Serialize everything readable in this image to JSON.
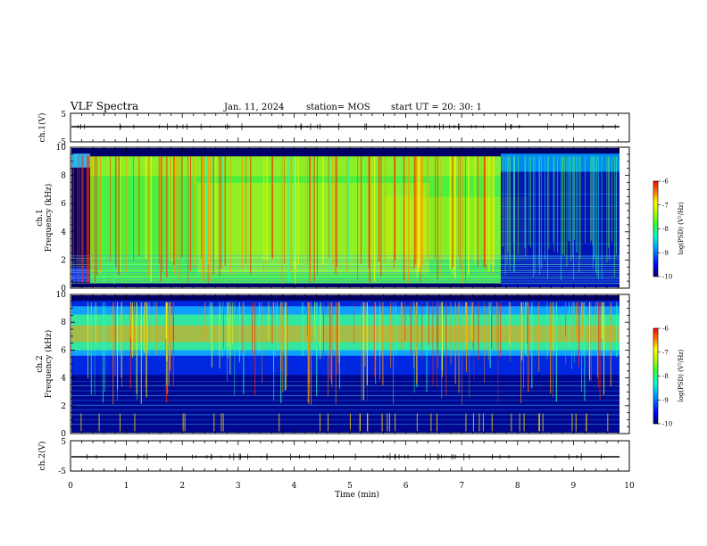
{
  "header": {
    "title": "VLF Spectra",
    "date": "Jan. 11, 2024",
    "station": "station= MOS",
    "start": "start UT =  20: 30: 1"
  },
  "colors": {
    "spectrogram_background": "#000066",
    "colormap": [
      "#00006a",
      "#0000ff",
      "#00a0ff",
      "#00ffd0",
      "#30ff30",
      "#b0ff00",
      "#ffff00",
      "#ff8000",
      "#ff0000"
    ]
  },
  "chart_data": [
    {
      "type": "line",
      "panel": "ch1-waveform",
      "ylabel": "ch.1(V)",
      "ylim": [
        -5,
        5
      ],
      "yticks": [
        "5",
        "-5"
      ],
      "x": [
        0,
        9.83
      ],
      "y": [
        0,
        0
      ],
      "note_values": "flat trace near 0 V with sparse small spikes"
    },
    {
      "type": "heatmap",
      "panel": "ch1-spectrogram",
      "ylabel": "ch.1 Frequency (kHz)",
      "xlim": [
        0,
        10
      ],
      "data_xmax": 9.83,
      "ylim": [
        0,
        10
      ],
      "yticks": [
        "0",
        "2",
        "4",
        "6",
        "8",
        "10"
      ],
      "colorbar": {
        "label": "log(PSD) (V²/Hz)",
        "ticks": [
          "-6",
          "-7",
          "-8",
          "-9",
          "-10"
        ],
        "range": [
          -10,
          -6
        ]
      },
      "segments": [
        {
          "t": [
            0.0,
            0.35
          ],
          "desc": "blue background with bright bands near 9 kHz"
        },
        {
          "t": [
            0.35,
            7.7
          ],
          "desc": "green/yellow broadband 0.5-9 kHz, frequent red vertical spherics"
        },
        {
          "t": [
            7.7,
            9.83
          ],
          "desc": "blue background, scattered cyan/green spherics"
        }
      ]
    },
    {
      "type": "heatmap",
      "panel": "ch2-spectrogram",
      "ylabel": "ch.2 Frequency (kHz)",
      "xlim": [
        0,
        10
      ],
      "data_xmax": 9.83,
      "ylim": [
        0,
        10
      ],
      "yticks": [
        "0",
        "2",
        "4",
        "6",
        "8",
        "10"
      ],
      "colorbar": {
        "label": "log(PSD) (V²/Hz)",
        "ticks": [
          "-6",
          "-7",
          "-8",
          "-9",
          "-10"
        ],
        "range": [
          -10,
          -6
        ]
      },
      "segments": [
        {
          "t": [
            0.0,
            9.83
          ],
          "desc": "dark blue background, orange/red band 6-9 kHz, many vertical spherics"
        }
      ]
    },
    {
      "type": "line",
      "panel": "ch2-waveform",
      "ylabel": "ch.2(V)",
      "ylim": [
        -5,
        5
      ],
      "yticks": [
        "5",
        "-5"
      ],
      "x": [
        0,
        9.83
      ],
      "y": [
        0,
        0
      ],
      "note_values": "flat trace near 0 V with sparse small spikes"
    }
  ],
  "xaxis": {
    "label": "Time (min)",
    "ticks": [
      "0",
      "1",
      "2",
      "3",
      "4",
      "5",
      "6",
      "7",
      "8",
      "9",
      "10"
    ]
  }
}
